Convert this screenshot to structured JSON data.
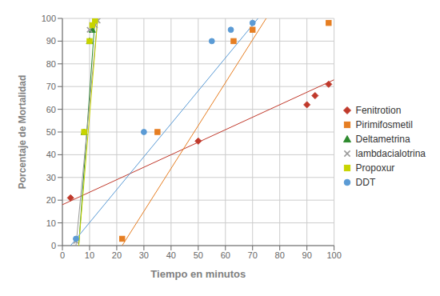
{
  "chart_data": {
    "type": "scatter",
    "xlabel": "Tiempo en minutos",
    "ylabel": "Porcentaje de Mortalidad",
    "xlim": [
      0,
      100
    ],
    "ylim": [
      0,
      100
    ],
    "xticks": [
      0,
      10,
      20,
      30,
      40,
      50,
      60,
      70,
      80,
      90,
      100
    ],
    "yticks": [
      0,
      10,
      20,
      30,
      40,
      50,
      60,
      70,
      80,
      90,
      100
    ],
    "grid": true,
    "legend": "right",
    "series": [
      {
        "name": "Fenitrotion",
        "color": "#c0392b",
        "marker": "diamond",
        "x": [
          3,
          50,
          90,
          93,
          98
        ],
        "values": [
          21,
          46,
          62,
          66,
          71
        ],
        "trend": {
          "x": [
            0,
            100
          ],
          "values": [
            18,
            73
          ]
        }
      },
      {
        "name": "Pirimifosmetil",
        "color": "#e67e22",
        "marker": "square",
        "x": [
          22,
          35,
          63,
          70,
          98
        ],
        "values": [
          3,
          50,
          90,
          95,
          98
        ],
        "trend": {
          "x": [
            22,
            75
          ],
          "values": [
            0,
            100
          ]
        }
      },
      {
        "name": "Deltametrina",
        "color": "#2d8a2d",
        "marker": "triangle",
        "x": [
          8,
          10,
          11
        ],
        "values": [
          50,
          90,
          95
        ],
        "trend": {
          "x": [
            6,
            12
          ],
          "values": [
            0,
            100
          ]
        }
      },
      {
        "name": "lambdacialotrina",
        "color": "#999999",
        "marker": "x",
        "x": [
          5,
          10,
          12,
          13
        ],
        "values": [
          2,
          95,
          97,
          99
        ],
        "trend": {
          "x": [
            5,
            13
          ],
          "values": [
            0,
            100
          ]
        }
      },
      {
        "name": "Propoxur",
        "color": "#c8d400",
        "marker": "square",
        "x": [
          8,
          10,
          11,
          12
        ],
        "values": [
          50,
          90,
          97,
          99
        ],
        "trend": {
          "x": [
            6,
            13
          ],
          "values": [
            0,
            100
          ]
        }
      },
      {
        "name": "DDT",
        "color": "#5b9bd5",
        "marker": "circle",
        "x": [
          5,
          30,
          55,
          62,
          70
        ],
        "values": [
          3,
          50,
          90,
          95,
          98
        ],
        "trend": {
          "x": [
            3,
            72
          ],
          "values": [
            0,
            100
          ]
        }
      }
    ]
  }
}
